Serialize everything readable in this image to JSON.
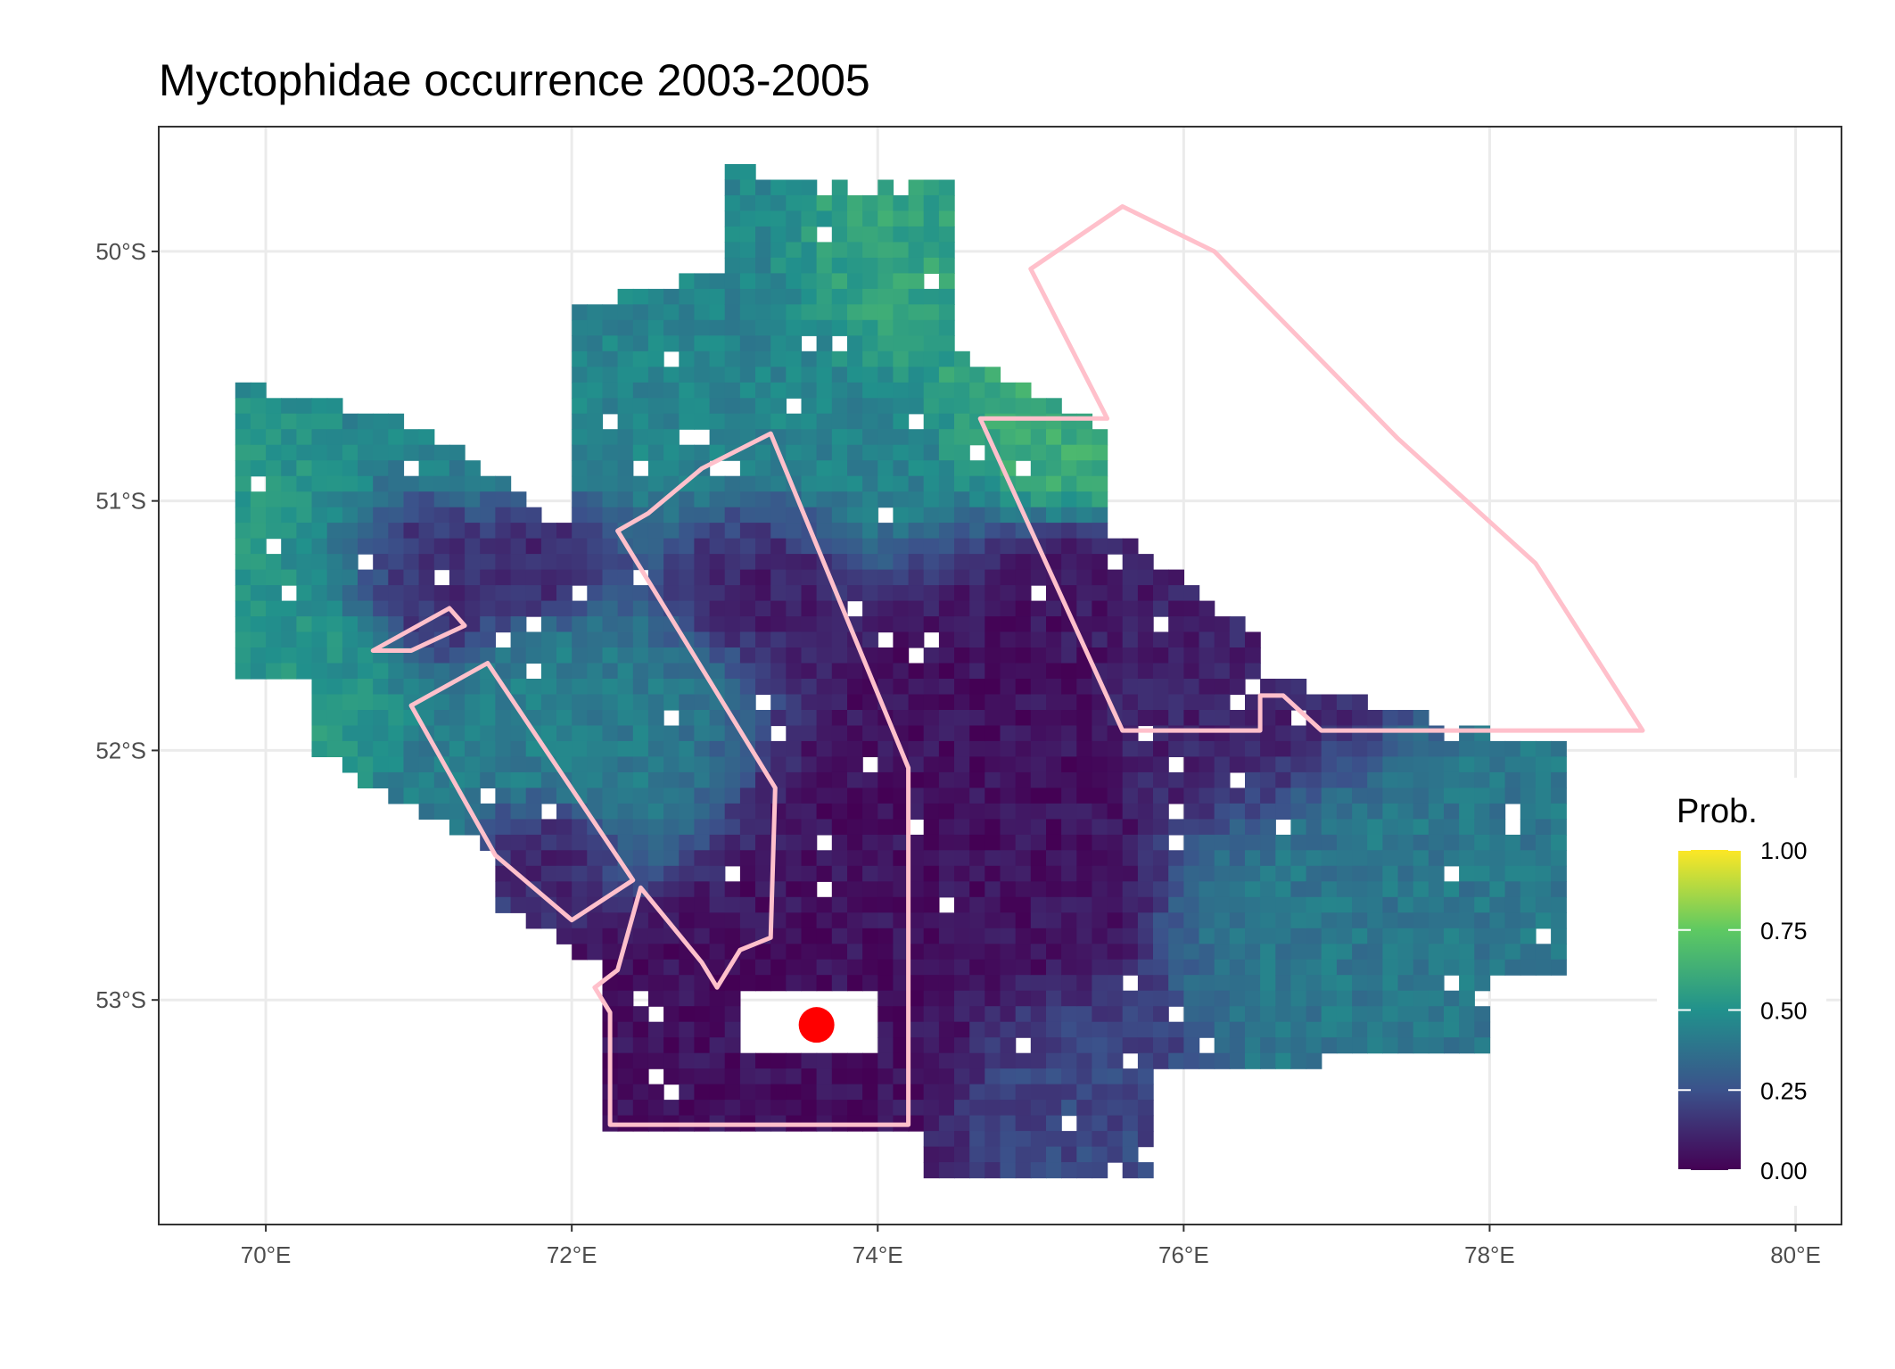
{
  "title": "Myctophidae  occurrence 2003-2005",
  "colors": {
    "panel_border": "#333333",
    "grid": "#ebebeb",
    "management_area_outline": "#ffc0cb",
    "site_marker": "#ff0000",
    "viridis": [
      "#440154",
      "#3b528b",
      "#21918c",
      "#5ec962",
      "#fde725"
    ]
  },
  "map": {
    "x_axis": {
      "ticks": [
        {
          "value": 70,
          "label": "70°E"
        },
        {
          "value": 72,
          "label": "72°E"
        },
        {
          "value": 74,
          "label": "74°E"
        },
        {
          "value": 76,
          "label": "76°E"
        },
        {
          "value": 78,
          "label": "78°E"
        },
        {
          "value": 80,
          "label": "80°E"
        }
      ],
      "range": [
        69.3,
        80.3
      ]
    },
    "y_axis": {
      "ticks": [
        {
          "value": -50,
          "label": "50°S"
        },
        {
          "value": -51,
          "label": "51°S"
        },
        {
          "value": -52,
          "label": "52°S"
        },
        {
          "value": -53,
          "label": "53°S"
        }
      ],
      "range": [
        -53.9,
        -49.5
      ]
    },
    "grid": true,
    "legend_placement": "right"
  },
  "legend": {
    "title": "Prob.",
    "breaks": [
      {
        "value": 1.0,
        "label": "1.00"
      },
      {
        "value": 0.75,
        "label": "0.75"
      },
      {
        "value": 0.5,
        "label": "0.50"
      },
      {
        "value": 0.25,
        "label": "0.25"
      },
      {
        "value": 0.0,
        "label": "0.00"
      }
    ]
  },
  "chart_data": {
    "type": "heatmap",
    "title": "Myctophidae  occurrence 2003-2005",
    "xlabel": "",
    "ylabel": "",
    "xlim": [
      69.3,
      80.3
    ],
    "ylim": [
      -53.9,
      -49.5
    ],
    "value_range": [
      0,
      1
    ],
    "colorbar_title": "Prob.",
    "cell_size_deg": {
      "lon": 0.1,
      "lat": 0.0625
    },
    "regions": [
      {
        "id": "northern-slope",
        "center": [
          72.6,
          -50.7
        ],
        "spread": [
          1.1,
          0.45
        ],
        "value": 0.45
      },
      {
        "id": "north-shelf-edge",
        "center": [
          74.3,
          -50.15
        ],
        "spread": [
          0.5,
          0.25
        ],
        "value": 0.58
      },
      {
        "id": "northeast-edge",
        "center": [
          75.1,
          -50.6
        ],
        "spread": [
          0.4,
          0.2
        ],
        "value": 0.62
      },
      {
        "id": "west-coast",
        "center": [
          70.3,
          -51.4
        ],
        "spread": [
          0.4,
          0.35
        ],
        "value": 0.52
      },
      {
        "id": "west-inner-low",
        "center": [
          71.0,
          -51.3
        ],
        "spread": [
          0.5,
          0.2
        ],
        "value": 0.12
      },
      {
        "id": "west-central-low",
        "center": [
          71.9,
          -51.2
        ],
        "spread": [
          0.4,
          0.2
        ],
        "value": 0.05
      },
      {
        "id": "central-north-low",
        "center": [
          73.1,
          -51.3
        ],
        "spread": [
          0.45,
          0.25
        ],
        "value": 0.05
      },
      {
        "id": "central-shelf",
        "center": [
          72.3,
          -51.9
        ],
        "spread": [
          0.7,
          0.4
        ],
        "value": 0.42
      },
      {
        "id": "southeast-shelf",
        "center": [
          74.3,
          -52.4
        ],
        "spread": [
          1.0,
          0.6
        ],
        "value": 0.05
      },
      {
        "id": "south-central",
        "center": [
          73.4,
          -53.0
        ],
        "spread": [
          0.9,
          0.35
        ],
        "value": 0.04
      },
      {
        "id": "east-trough",
        "center": [
          76.3,
          -51.9
        ],
        "spread": [
          0.6,
          0.3
        ],
        "value": 0.1
      },
      {
        "id": "east-slope",
        "center": [
          77.0,
          -52.6
        ],
        "spread": [
          0.7,
          0.4
        ],
        "value": 0.4
      },
      {
        "id": "west-pocket",
        "center": [
          71.9,
          -52.4
        ],
        "spread": [
          0.3,
          0.15
        ],
        "value": 0.08
      },
      {
        "id": "southeast-shallows",
        "center": [
          75.2,
          -53.3
        ],
        "spread": [
          0.5,
          0.25
        ],
        "value": 0.22
      }
    ],
    "management_areas": [
      {
        "id": "northeast-sector",
        "path": [
          [
            75.0,
            -50.07
          ],
          [
            75.6,
            -49.82
          ],
          [
            76.2,
            -50.0
          ],
          [
            77.4,
            -50.75
          ],
          [
            78.3,
            -51.25
          ],
          [
            79.0,
            -51.92
          ],
          [
            76.9,
            -51.92
          ],
          [
            76.65,
            -51.78
          ],
          [
            76.5,
            -51.78
          ],
          [
            76.5,
            -51.92
          ],
          [
            75.6,
            -51.92
          ],
          [
            74.67,
            -50.67
          ],
          [
            75.5,
            -50.67
          ],
          [
            75.0,
            -50.07
          ]
        ]
      },
      {
        "id": "central-corridor",
        "path": [
          [
            72.3,
            -51.12
          ],
          [
            72.5,
            -51.05
          ],
          [
            72.85,
            -50.87
          ],
          [
            73.3,
            -50.73
          ],
          [
            74.2,
            -52.07
          ],
          [
            74.2,
            -53.5
          ],
          [
            72.25,
            -53.5
          ],
          [
            72.25,
            -53.05
          ],
          [
            72.15,
            -52.95
          ],
          [
            72.3,
            -52.88
          ],
          [
            72.45,
            -52.55
          ],
          [
            72.85,
            -52.85
          ],
          [
            72.95,
            -52.95
          ],
          [
            73.1,
            -52.8
          ],
          [
            73.3,
            -52.75
          ],
          [
            73.33,
            -52.15
          ],
          [
            72.3,
            -51.12
          ]
        ]
      },
      {
        "id": "west-strip",
        "path": [
          [
            71.45,
            -51.65
          ],
          [
            72.4,
            -52.52
          ],
          [
            72.0,
            -52.68
          ],
          [
            71.5,
            -52.42
          ],
          [
            70.95,
            -51.82
          ],
          [
            71.45,
            -51.65
          ]
        ]
      },
      {
        "id": "west-notch",
        "path": [
          [
            70.7,
            -51.6
          ],
          [
            71.2,
            -51.43
          ],
          [
            71.3,
            -51.5
          ],
          [
            70.95,
            -51.6
          ],
          [
            70.7,
            -51.6
          ]
        ]
      }
    ],
    "points": [
      {
        "id": "sample-site",
        "lon": 73.6,
        "lat": -53.1
      }
    ]
  }
}
